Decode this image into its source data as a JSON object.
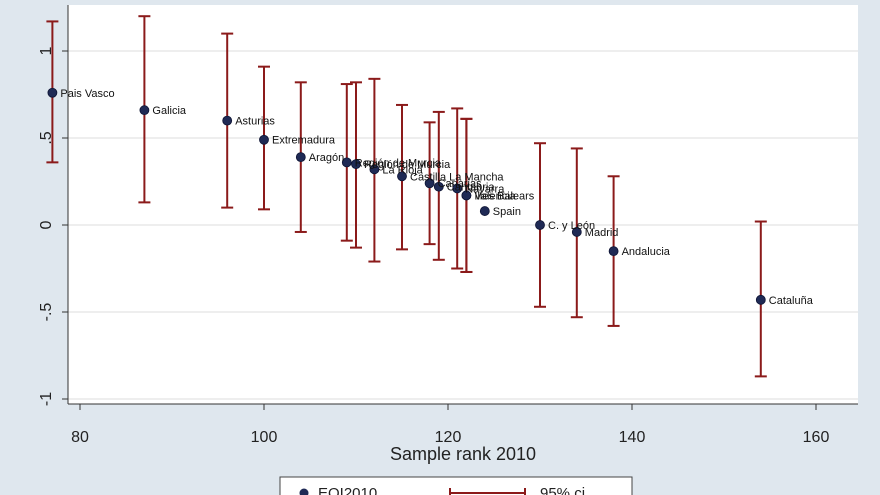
{
  "chart_data": {
    "type": "scatter",
    "title": "",
    "xlabel": "Sample rank 2010",
    "ylabel": "",
    "xlim": [
      75,
      161
    ],
    "ylim": [
      -1.1,
      1.22
    ],
    "xticks": [
      80,
      100,
      120,
      140,
      160
    ],
    "yticks": [
      -1,
      -0.5,
      0,
      0.5,
      1
    ],
    "ytick_labels": [
      "-1",
      "-.5",
      "0",
      ".5",
      "1"
    ],
    "grid": "horizontal",
    "colors": {
      "point": "#1f2a55",
      "errorbar": "#8b1a1a",
      "plot_bg": "#ffffff",
      "outer_bg": "#dfe7ee",
      "grid": "#dcdcdc"
    },
    "legend": {
      "placement": "bottom",
      "entries": [
        {
          "label": "EQI2010",
          "kind": "point"
        },
        {
          "label": "95% ci",
          "kind": "errorbar"
        }
      ]
    },
    "points": [
      {
        "label": "Pais Vasco",
        "x": 77,
        "y": 0.76,
        "lo": 0.36,
        "hi": 1.17
      },
      {
        "label": "Galicia",
        "x": 87,
        "y": 0.66,
        "lo": 0.13,
        "hi": 1.2
      },
      {
        "label": "Asturias",
        "x": 96,
        "y": 0.6,
        "lo": 0.1,
        "hi": 1.1
      },
      {
        "label": "Extremadura",
        "x": 100,
        "y": 0.49,
        "lo": 0.09,
        "hi": 0.91
      },
      {
        "label": "Aragón",
        "x": 104,
        "y": 0.39,
        "lo": -0.04,
        "hi": 0.82
      },
      {
        "label": "Región de Murcia",
        "x": 109,
        "y": 0.36,
        "lo": -0.09,
        "hi": 0.81
      },
      {
        "label": "Región de Murcia",
        "x": 110,
        "y": 0.35,
        "lo": -0.13,
        "hi": 0.82
      },
      {
        "label": "La Rioja",
        "x": 112,
        "y": 0.32,
        "lo": -0.21,
        "hi": 0.84
      },
      {
        "label": "Castilla La Mancha",
        "x": 115,
        "y": 0.28,
        "lo": -0.14,
        "hi": 0.69
      },
      {
        "label": "Canarias",
        "x": 118,
        "y": 0.24,
        "lo": -0.11,
        "hi": 0.59
      },
      {
        "label": "Cantabria",
        "x": 119,
        "y": 0.22,
        "lo": -0.2,
        "hi": 0.65
      },
      {
        "label": "Navarra",
        "x": 121,
        "y": 0.21,
        "lo": -0.25,
        "hi": 0.67
      },
      {
        "label": "Valencia",
        "x": 122,
        "y": 0.17,
        "lo": -0.27,
        "hi": 0.61
      },
      {
        "label": "Illes Balears",
        "x": 122,
        "y": 0.17,
        "lo": -0.27,
        "hi": 0.61
      },
      {
        "label": "Spain",
        "x": 124,
        "y": 0.08,
        "lo": null,
        "hi": null
      },
      {
        "label": "C. y León",
        "x": 130,
        "y": 0.0,
        "lo": -0.47,
        "hi": 0.47
      },
      {
        "label": "Madrid",
        "x": 134,
        "y": -0.04,
        "lo": -0.53,
        "hi": 0.44
      },
      {
        "label": "Andalucia",
        "x": 138,
        "y": -0.15,
        "lo": -0.58,
        "hi": 0.28
      },
      {
        "label": "Cataluña",
        "x": 154,
        "y": -0.43,
        "lo": -0.87,
        "hi": 0.02
      }
    ]
  }
}
